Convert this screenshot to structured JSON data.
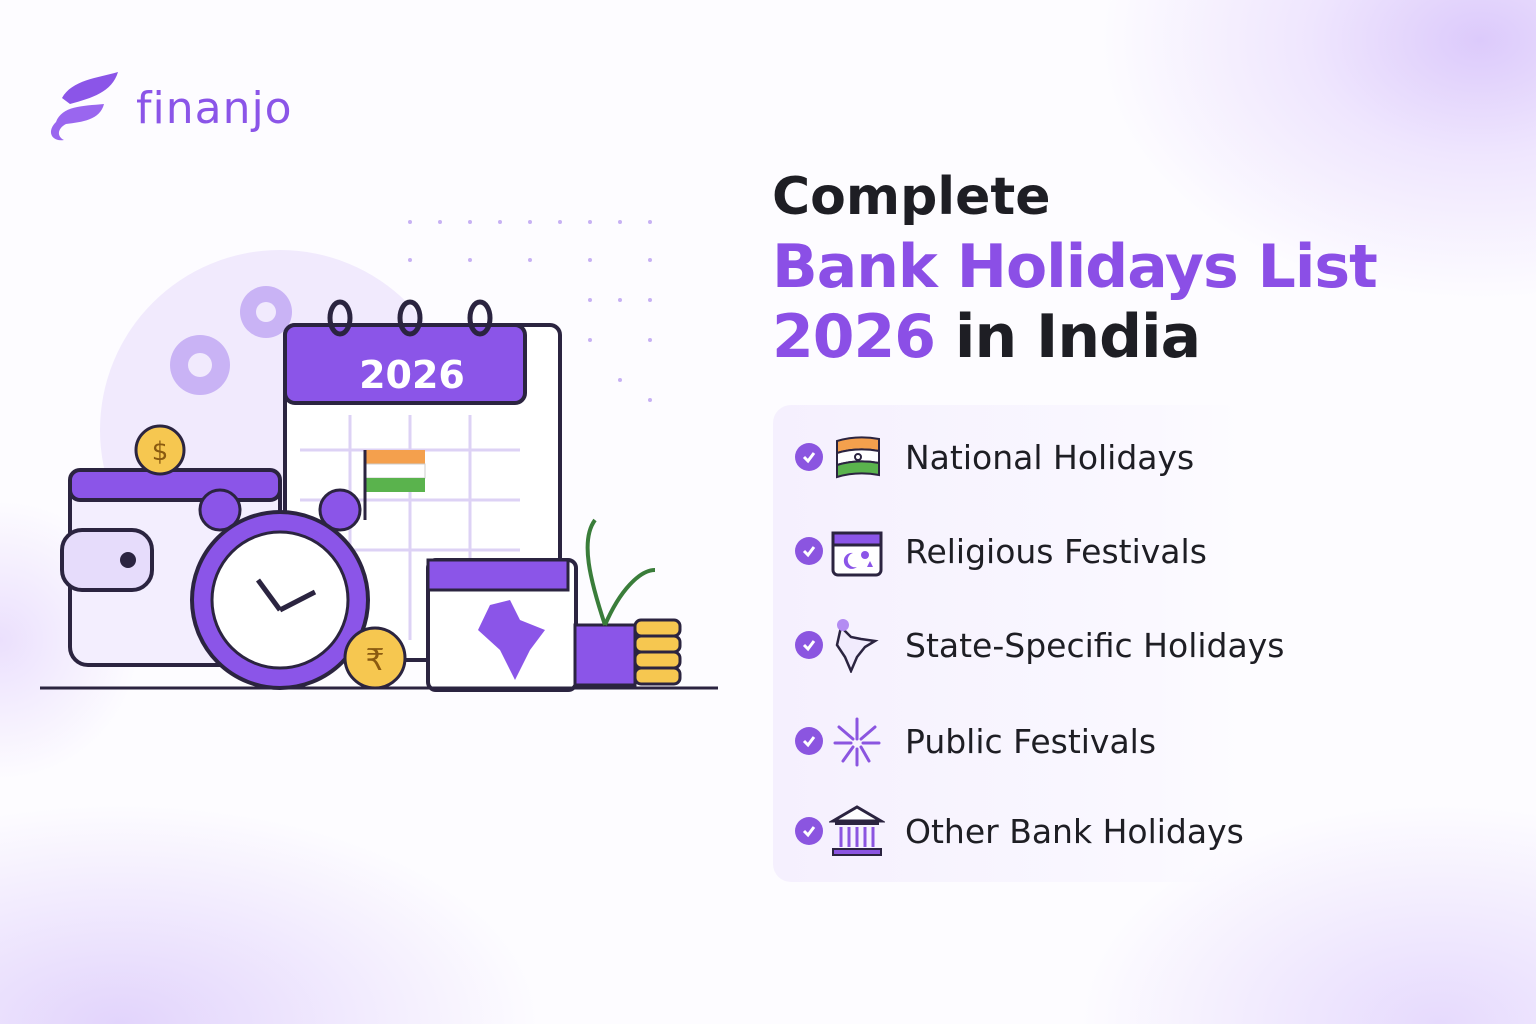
{
  "brand": {
    "name": "finanjo",
    "color": "#8b55e8"
  },
  "title": {
    "line1": "Complete",
    "line2": "Bank Holidays List",
    "year": "2026",
    "line3_rest": " in India",
    "accent": "#8b4fe6"
  },
  "illustration": {
    "calendar_year": "2026",
    "coin_dollar": "$",
    "coin_rupee": "₹"
  },
  "list": [
    {
      "label": "National Holidays",
      "icon": "india-flag-icon"
    },
    {
      "label": "Religious Festivals",
      "icon": "festival-calendar-icon"
    },
    {
      "label": "State-Specific Holidays",
      "icon": "india-map-pin-icon"
    },
    {
      "label": "Public Festivals",
      "icon": "fireworks-icon"
    },
    {
      "label": "Other Bank Holidays",
      "icon": "bank-building-icon"
    }
  ]
}
